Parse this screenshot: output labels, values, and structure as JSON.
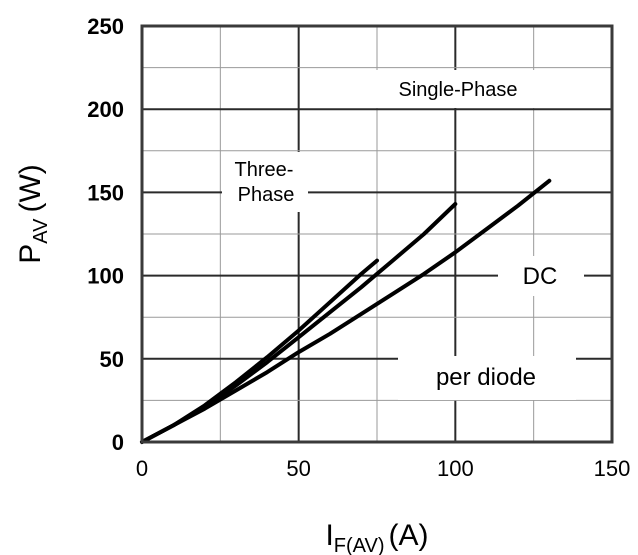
{
  "chart_data": {
    "type": "line",
    "xlabel": {
      "main": "I",
      "sub": "F(AV)",
      "unit": "(A)"
    },
    "ylabel": {
      "main": "P",
      "sub": "AV",
      "unit": "(W)"
    },
    "xlim": [
      0,
      150
    ],
    "ylim": [
      0,
      250
    ],
    "x_ticks": [
      "0",
      "50",
      "100",
      "150"
    ],
    "y_ticks": [
      "0",
      "50",
      "100",
      "150",
      "200",
      "250"
    ],
    "grid": true,
    "series": [
      {
        "name": "Three-Phase",
        "points": [
          [
            0,
            0
          ],
          [
            10,
            10
          ],
          [
            20,
            22
          ],
          [
            30,
            36
          ],
          [
            40,
            51
          ],
          [
            50,
            67
          ],
          [
            60,
            84
          ],
          [
            70,
            101
          ],
          [
            75,
            109
          ]
        ]
      },
      {
        "name": "Single-Phase",
        "points": [
          [
            0,
            0
          ],
          [
            10,
            10
          ],
          [
            20,
            21
          ],
          [
            30,
            34
          ],
          [
            40,
            48
          ],
          [
            50,
            63
          ],
          [
            60,
            78
          ],
          [
            70,
            93
          ],
          [
            80,
            109
          ],
          [
            90,
            125
          ],
          [
            100,
            143
          ]
        ]
      },
      {
        "name": "DC",
        "points": [
          [
            0,
            0
          ],
          [
            10,
            10
          ],
          [
            20,
            20
          ],
          [
            30,
            31
          ],
          [
            40,
            42
          ],
          [
            50,
            54
          ],
          [
            60,
            65
          ],
          [
            70,
            77
          ],
          [
            80,
            89
          ],
          [
            90,
            101
          ],
          [
            100,
            114
          ],
          [
            110,
            128
          ],
          [
            120,
            142
          ],
          [
            130,
            157
          ]
        ]
      }
    ],
    "annotations": {
      "three_phase_line1": "Three-",
      "three_phase_line2": "Phase",
      "single_phase": "Single-Phase",
      "dc": "DC",
      "per_diode": "per diode"
    }
  }
}
